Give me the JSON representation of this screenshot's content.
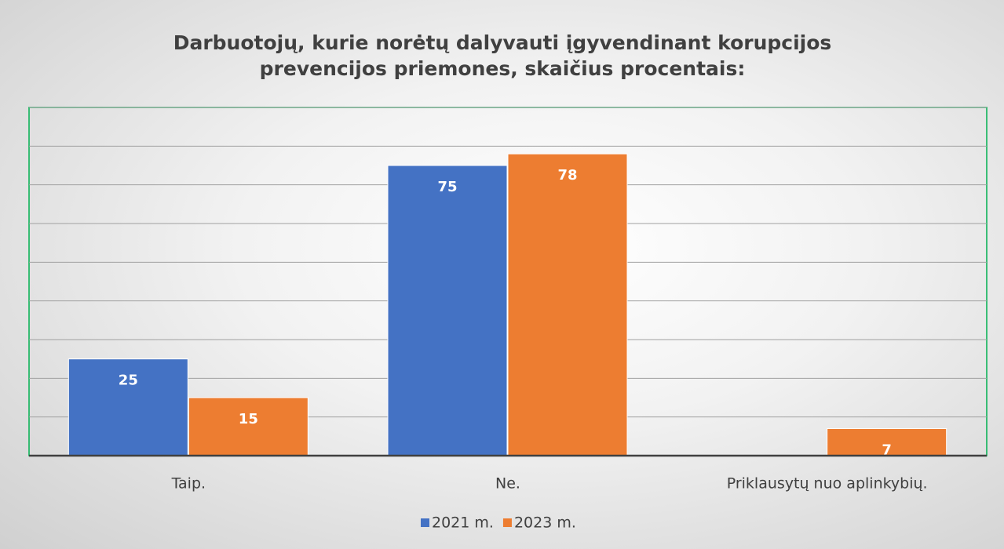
{
  "chart_data": {
    "type": "bar",
    "title": "Darbuotojų, kurie norėtų dalyvauti įgyvendinant korupcijos prevencijos priemones, skaičius procentais:",
    "categories": [
      "Taip.",
      "Ne.",
      "Priklausytų nuo aplinkybių."
    ],
    "series": [
      {
        "name": "2021 m.",
        "color": "#4472c4",
        "values": [
          25,
          75,
          null
        ]
      },
      {
        "name": "2023 m.",
        "color": "#ed7d31",
        "values": [
          15,
          78,
          7
        ]
      }
    ],
    "ylim": [
      0,
      90
    ],
    "yticks": [
      0,
      10,
      20,
      30,
      40,
      50,
      60,
      70,
      80,
      90
    ],
    "grid": true,
    "legend": "bottom"
  }
}
